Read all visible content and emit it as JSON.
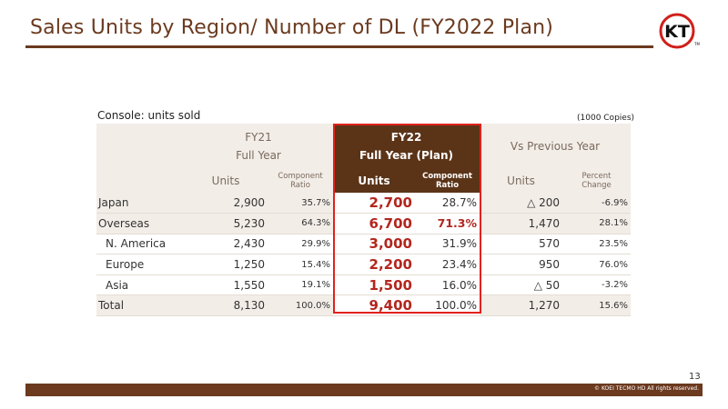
{
  "header": {
    "title": "Sales Units by Region/ Number of DL (FY2022 Plan)",
    "logo_text": "KT",
    "logo_tm": "TM"
  },
  "subtitle": "Console: units sold",
  "unit_note": "(1000 Copies)",
  "columns": {
    "fy21": {
      "line1": "FY21",
      "line2": "Full Year",
      "units": "Units",
      "ratio_l1": "Component",
      "ratio_l2": "Ratio"
    },
    "fy22": {
      "line1": "FY22",
      "line2": "Full Year (Plan)",
      "units": "Units",
      "ratio_l1": "Component",
      "ratio_l2": "Ratio"
    },
    "vs": {
      "line1": "Vs Previous Year",
      "units": "Units",
      "change_l1": "Percent",
      "change_l2": "Change"
    }
  },
  "rows": [
    {
      "label": "Japan",
      "fy21_units": "2,900",
      "fy21_ratio": "35.7%",
      "fy22_units": "2,700",
      "fy22_ratio": "28.7%",
      "vs_units": "△ 200",
      "vs_change": "-6.9%"
    },
    {
      "label": "Overseas",
      "fy21_units": "5,230",
      "fy21_ratio": "64.3%",
      "fy22_units": "6,700",
      "fy22_ratio": "71.3%",
      "vs_units": "1,470",
      "vs_change": "28.1%"
    },
    {
      "label": "N. America",
      "fy21_units": "2,430",
      "fy21_ratio": "29.9%",
      "fy22_units": "3,000",
      "fy22_ratio": "31.9%",
      "vs_units": "570",
      "vs_change": "23.5%"
    },
    {
      "label": "Europe",
      "fy21_units": "1,250",
      "fy21_ratio": "15.4%",
      "fy22_units": "2,200",
      "fy22_ratio": "23.4%",
      "vs_units": "950",
      "vs_change": "76.0%"
    },
    {
      "label": "Asia",
      "fy21_units": "1,550",
      "fy21_ratio": "19.1%",
      "fy22_units": "1,500",
      "fy22_ratio": "16.0%",
      "vs_units": "△ 50",
      "vs_change": "-3.2%"
    },
    {
      "label": "Total",
      "fy21_units": "8,130",
      "fy21_ratio": "100.0%",
      "fy22_units": "9,400",
      "fy22_ratio": "100.0%",
      "vs_units": "1,270",
      "vs_change": "15.6%"
    }
  ],
  "footer": {
    "page_number": "13",
    "copyright": "© KOEI TECMO HD All rights reserved."
  },
  "colors": {
    "brand_brown": "#6b3a1f",
    "header_dark": "#5b3418",
    "highlight_red": "#e0221c",
    "shade": "#f2ede7"
  }
}
